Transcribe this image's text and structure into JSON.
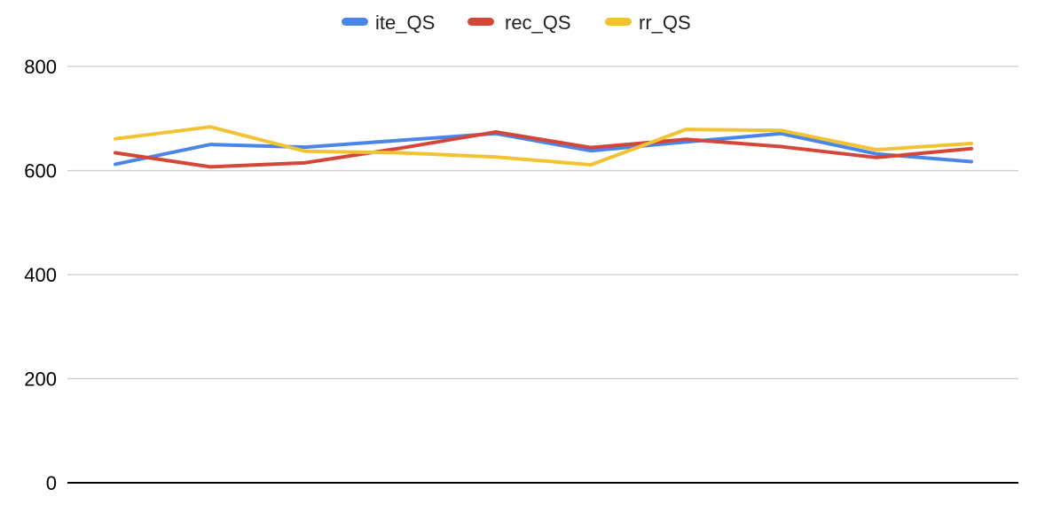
{
  "chart_data": {
    "type": "line",
    "title": "",
    "xlabel": "",
    "ylabel": "",
    "ylim": [
      0,
      800
    ],
    "y_ticks": [
      "0",
      "200",
      "400",
      "600",
      "800"
    ],
    "y_tick_values": [
      0,
      200,
      400,
      600,
      800
    ],
    "x": [
      1,
      2,
      3,
      4,
      5,
      6,
      7,
      8,
      9,
      10
    ],
    "grid": true,
    "legend_position": "top-center",
    "series": [
      {
        "name": "ite_QS",
        "color": "#4a86e8",
        "values": [
          612,
          650,
          645,
          658,
          671,
          638,
          655,
          671,
          632,
          617
        ]
      },
      {
        "name": "rec_QS",
        "color": "#d44638",
        "values": [
          634,
          607,
          615,
          643,
          674,
          644,
          660,
          646,
          625,
          642
        ]
      },
      {
        "name": "rr_QS",
        "color": "#f1c232",
        "values": [
          661,
          684,
          637,
          634,
          626,
          611,
          679,
          677,
          640,
          652
        ]
      }
    ]
  }
}
